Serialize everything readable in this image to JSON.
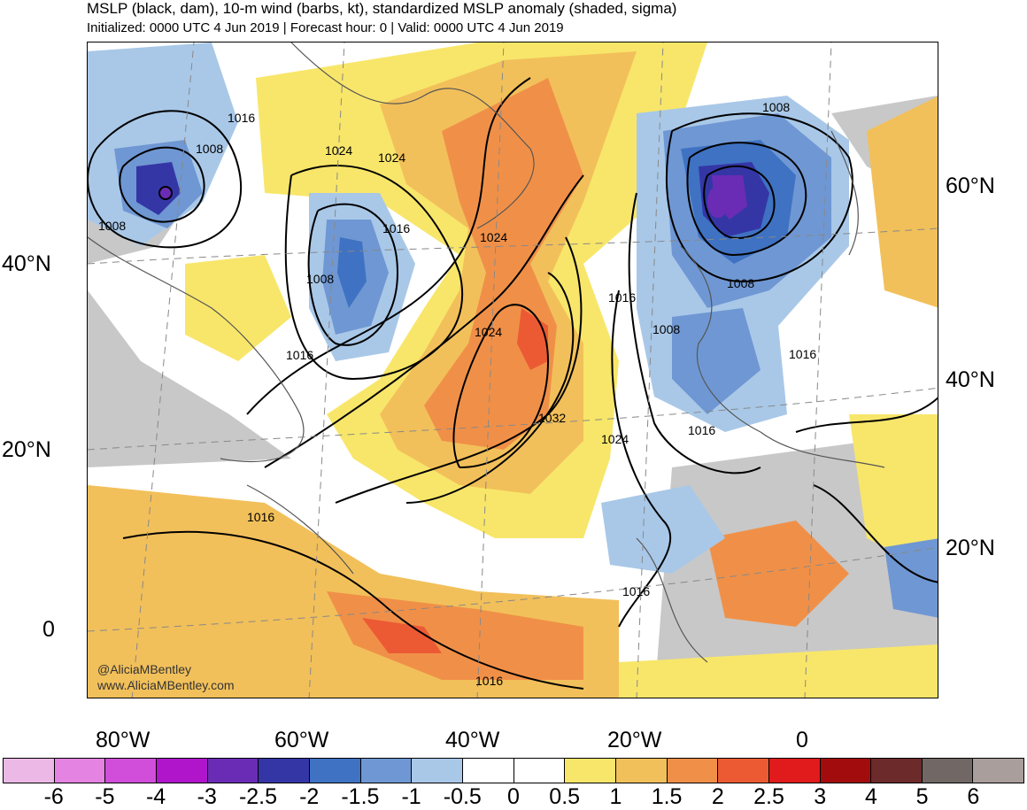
{
  "header": {
    "title": "MSLP (black, dam), 10-m wind (barbs, kt), standardized MSLP anomaly (shaded, sigma)",
    "subtitle": "Initialized: 0000 UTC 4 Jun 2019 | Forecast hour: 0 | Valid: 0000 UTC 4 Jun 2019"
  },
  "map": {
    "region": "North Atlantic",
    "lat_labels_left": [
      "40°N",
      "20°N",
      "0"
    ],
    "lat_labels_right": [
      "60°N",
      "40°N",
      "20°N"
    ],
    "lon_labels_bottom": [
      "80°W",
      "60°W",
      "40°W",
      "20°W",
      "0"
    ],
    "isobar_labels": [
      "1016",
      "1008",
      "1024",
      "1024",
      "1008",
      "1016",
      "1008",
      "1024",
      "1008",
      "1016",
      "1024",
      "1016",
      "1008",
      "1016",
      "1008",
      "1032",
      "1016",
      "1024",
      "1016",
      "1016",
      "1016"
    ],
    "credit_handle": "@AliciaMBentley",
    "credit_site": "www.AliciaMBentley.com"
  },
  "colorbar": {
    "ticks": [
      "-6",
      "-5",
      "-4",
      "-3",
      "-2.5",
      "-2",
      "-1.5",
      "-1",
      "-0.5",
      "0",
      "0.5",
      "1",
      "1.5",
      "2",
      "2.5",
      "3",
      "4",
      "5",
      "6"
    ],
    "colors": [
      "#ecb9e6",
      "#e483e1",
      "#d04ed9",
      "#b015cc",
      "#6b2cb5",
      "#3536a6",
      "#3f72c2",
      "#6f97d3",
      "#a9c8e8",
      "#ffffff",
      "#ffffff",
      "#f8e66a",
      "#f2c05a",
      "#f09048",
      "#ec5a34",
      "#e11b1b",
      "#a30c0c",
      "#6c2a2a",
      "#716866",
      "#a99e9c"
    ]
  }
}
